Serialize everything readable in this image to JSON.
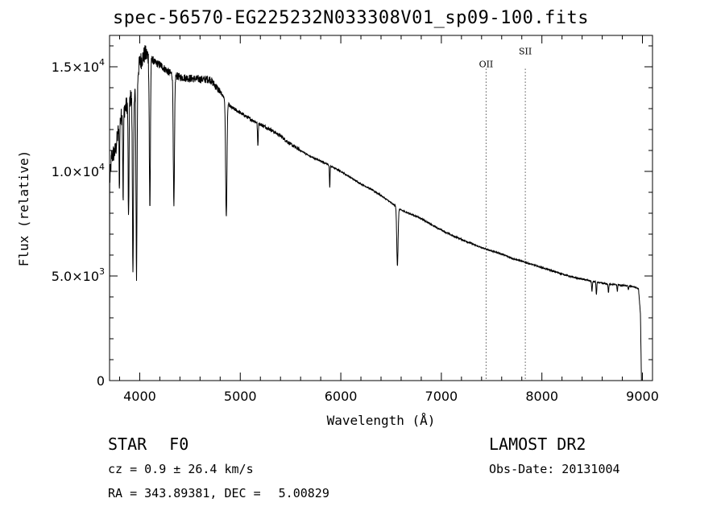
{
  "chart_data": {
    "type": "line",
    "title": "spec-56570-EG225232N033308V01_sp09-100.fits",
    "xlabel": "Wavelength (Å)",
    "ylabel": "Flux (relative)",
    "xlim": [
      3700,
      9100
    ],
    "ylim": [
      0,
      16500
    ],
    "x_ticks": [
      4000,
      5000,
      6000,
      7000,
      8000,
      9000
    ],
    "x_tick_labels": [
      "4000",
      "5000",
      "6000",
      "7000",
      "8000",
      "9000"
    ],
    "y_ticks": [
      0,
      5000,
      10000,
      15000
    ],
    "y_tick_labels": [
      {
        "mant": "0",
        "exp": ""
      },
      {
        "mant": "5.0×10",
        "exp": "3"
      },
      {
        "mant": "1.0×10",
        "exp": "4"
      },
      {
        "mant": "1.5×10",
        "exp": "4"
      }
    ],
    "line_markers": [
      {
        "label": "OII",
        "x": 7445
      },
      {
        "label": "SII",
        "x": 7835
      }
    ],
    "continuum": [
      [
        3700,
        0
      ],
      [
        3702,
        9500
      ],
      [
        3720,
        10700
      ],
      [
        3760,
        11000
      ],
      [
        3800,
        12400
      ],
      [
        3850,
        13000
      ],
      [
        3900,
        13400
      ],
      [
        3950,
        14000
      ],
      [
        4000,
        15200
      ],
      [
        4050,
        15600
      ],
      [
        4100,
        15500
      ],
      [
        4150,
        15200
      ],
      [
        4200,
        15100
      ],
      [
        4300,
        14700
      ],
      [
        4400,
        14500
      ],
      [
        4500,
        14450
      ],
      [
        4600,
        14400
      ],
      [
        4700,
        14400
      ],
      [
        4800,
        13800
      ],
      [
        4900,
        13100
      ],
      [
        5000,
        12800
      ],
      [
        5100,
        12500
      ],
      [
        5200,
        12250
      ],
      [
        5300,
        12000
      ],
      [
        5400,
        11700
      ],
      [
        5500,
        11300
      ],
      [
        5600,
        11000
      ],
      [
        5700,
        10700
      ],
      [
        5800,
        10500
      ],
      [
        5900,
        10250
      ],
      [
        6000,
        10000
      ],
      [
        6100,
        9700
      ],
      [
        6200,
        9400
      ],
      [
        6300,
        9150
      ],
      [
        6400,
        8850
      ],
      [
        6500,
        8500
      ],
      [
        6600,
        8150
      ],
      [
        6700,
        7950
      ],
      [
        6800,
        7750
      ],
      [
        6900,
        7450
      ],
      [
        7000,
        7200
      ],
      [
        7100,
        6950
      ],
      [
        7200,
        6750
      ],
      [
        7300,
        6550
      ],
      [
        7400,
        6350
      ],
      [
        7500,
        6200
      ],
      [
        7600,
        6050
      ],
      [
        7700,
        5850
      ],
      [
        7800,
        5700
      ],
      [
        7900,
        5550
      ],
      [
        8000,
        5400
      ],
      [
        8100,
        5250
      ],
      [
        8200,
        5100
      ],
      [
        8300,
        4950
      ],
      [
        8400,
        4850
      ],
      [
        8500,
        4750
      ],
      [
        8600,
        4650
      ],
      [
        8700,
        4600
      ],
      [
        8800,
        4550
      ],
      [
        8900,
        4500
      ],
      [
        8960,
        4400
      ],
      [
        8980,
        3200
      ],
      [
        8990,
        0
      ],
      [
        9000,
        0
      ]
    ],
    "absorption_lines": [
      {
        "x": 3798,
        "min": 9100,
        "width": 5
      },
      {
        "x": 3835,
        "min": 8700,
        "width": 6
      },
      {
        "x": 3889,
        "min": 7500,
        "width": 7
      },
      {
        "x": 3933,
        "min": 5200,
        "width": 9
      },
      {
        "x": 3968,
        "min": 5100,
        "width": 9
      },
      {
        "x": 4101,
        "min": 8200,
        "width": 9
      },
      {
        "x": 4340,
        "min": 8300,
        "width": 10
      },
      {
        "x": 4861,
        "min": 7800,
        "width": 11
      },
      {
        "x": 5175,
        "min": 11200,
        "width": 6
      },
      {
        "x": 5890,
        "min": 9200,
        "width": 5
      },
      {
        "x": 6563,
        "min": 5500,
        "width": 11
      },
      {
        "x": 8498,
        "min": 4250,
        "width": 6
      },
      {
        "x": 8542,
        "min": 4100,
        "width": 6
      },
      {
        "x": 8662,
        "min": 4200,
        "width": 6
      },
      {
        "x": 8750,
        "min": 4250,
        "width": 5
      },
      {
        "x": 8860,
        "min": 4300,
        "width": 5
      }
    ]
  },
  "info": {
    "object_class": "STAR",
    "subclass": "F0",
    "survey": "LAMOST DR2",
    "cz": "cz = 0.9 ± 26.4 km/s",
    "obs_date": "Obs-Date: 20131004",
    "ra_dec_label": "RA = 343.89381, DEC =",
    "dec_value": "5.00829"
  }
}
